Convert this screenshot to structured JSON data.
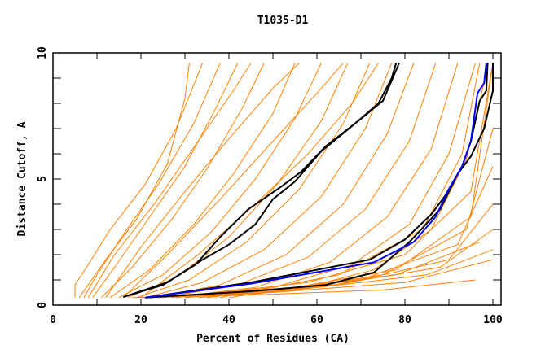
{
  "chart_data": {
    "type": "line",
    "title": "T1035-D1",
    "xlabel": "Percent of Residues (CA)",
    "ylabel": "Distance Cutoff, A",
    "xlim": [
      0,
      100
    ],
    "ylim": [
      0,
      10
    ],
    "x_ticks": [
      0,
      20,
      40,
      60,
      80,
      100
    ],
    "y_ticks": [
      0,
      5,
      10
    ],
    "x_minor_step": 10,
    "y_minor_step": 1,
    "grid": false,
    "colors": {
      "models": "#ff8000",
      "highlight": "#000000",
      "reference": "#0000ff"
    },
    "series_orange": [
      [
        [
          5,
          0.3
        ],
        [
          5,
          0.8
        ],
        [
          8,
          1.6
        ],
        [
          13,
          3
        ],
        [
          21,
          4.8
        ],
        [
          28,
          7
        ],
        [
          34,
          9.6
        ]
      ],
      [
        [
          7,
          0.3
        ],
        [
          10,
          1.2
        ],
        [
          16,
          2.8
        ],
        [
          24,
          4.8
        ],
        [
          32,
          7.2
        ],
        [
          38,
          9.6
        ]
      ],
      [
        [
          9,
          0.3
        ],
        [
          14,
          1.5
        ],
        [
          22,
          3.5
        ],
        [
          30,
          5.5
        ],
        [
          37,
          7.8
        ],
        [
          42,
          9.6
        ]
      ],
      [
        [
          11,
          0.3
        ],
        [
          18,
          1.5
        ],
        [
          27,
          3.4
        ],
        [
          35,
          5.4
        ],
        [
          43,
          7.8
        ],
        [
          48,
          9.6
        ]
      ],
      [
        [
          13,
          0.3
        ],
        [
          22,
          1.4
        ],
        [
          32,
          3.2
        ],
        [
          41,
          5.2
        ],
        [
          50,
          7.6
        ],
        [
          55,
          9.6
        ]
      ],
      [
        [
          15,
          0.3
        ],
        [
          25,
          1.2
        ],
        [
          36,
          2.9
        ],
        [
          46,
          5
        ],
        [
          55,
          7.4
        ],
        [
          61,
          9.6
        ]
      ],
      [
        [
          17,
          0.3
        ],
        [
          28,
          1.1
        ],
        [
          40,
          2.7
        ],
        [
          51,
          4.8
        ],
        [
          61,
          7.3
        ],
        [
          67,
          9.6
        ]
      ],
      [
        [
          19,
          0.3
        ],
        [
          31,
          1
        ],
        [
          44,
          2.5
        ],
        [
          56,
          4.6
        ],
        [
          66,
          7.2
        ],
        [
          72,
          9.6
        ]
      ],
      [
        [
          21,
          0.3
        ],
        [
          34,
          0.9
        ],
        [
          48,
          2.2
        ],
        [
          61,
          4.3
        ],
        [
          71,
          7
        ],
        [
          77,
          9.6
        ]
      ],
      [
        [
          23,
          0.3
        ],
        [
          38,
          0.8
        ],
        [
          53,
          2
        ],
        [
          66,
          4
        ],
        [
          76,
          6.8
        ],
        [
          82,
          9.6
        ]
      ],
      [
        [
          25,
          0.3
        ],
        [
          42,
          0.8
        ],
        [
          58,
          1.9
        ],
        [
          71,
          3.8
        ],
        [
          81,
          6.5
        ],
        [
          87,
          9.6
        ]
      ],
      [
        [
          27,
          0.3
        ],
        [
          46,
          0.7
        ],
        [
          63,
          1.7
        ],
        [
          76,
          3.5
        ],
        [
          86,
          6.2
        ],
        [
          92,
          9.6
        ]
      ],
      [
        [
          30,
          0.3
        ],
        [
          50,
          0.7
        ],
        [
          68,
          1.6
        ],
        [
          81,
          3.2
        ],
        [
          90,
          6
        ],
        [
          96,
          9.6
        ]
      ],
      [
        [
          33,
          0.3
        ],
        [
          55,
          0.6
        ],
        [
          73,
          1.4
        ],
        [
          86,
          3
        ],
        [
          94,
          5.8
        ],
        [
          99,
          9.6
        ]
      ],
      [
        [
          6,
          0.3
        ],
        [
          12,
          1.8
        ],
        [
          19,
          3.4
        ],
        [
          26,
          5.6
        ],
        [
          30,
          8.2
        ],
        [
          31,
          9.6
        ]
      ],
      [
        [
          8,
          0.3
        ],
        [
          14,
          2
        ],
        [
          23,
          4
        ],
        [
          33,
          6.5
        ],
        [
          41,
          8.5
        ],
        [
          45,
          9.6
        ]
      ],
      [
        [
          12,
          0.3
        ],
        [
          20,
          2.3
        ],
        [
          30,
          4.5
        ],
        [
          40,
          6.6
        ],
        [
          50,
          8.6
        ],
        [
          56,
          9.6
        ]
      ],
      [
        [
          16,
          0.3
        ],
        [
          26,
          2
        ],
        [
          38,
          4.2
        ],
        [
          50,
          6.5
        ],
        [
          60,
          8.4
        ],
        [
          66,
          9.6
        ]
      ],
      [
        [
          20,
          0.3
        ],
        [
          33,
          2
        ],
        [
          46,
          4
        ],
        [
          58,
          6
        ],
        [
          68,
          8
        ],
        [
          74,
          9.6
        ]
      ],
      [
        [
          20,
          0.3
        ],
        [
          50,
          0.5
        ],
        [
          80,
          0.9
        ],
        [
          100,
          1.8
        ]
      ],
      [
        [
          22,
          0.3
        ],
        [
          55,
          0.6
        ],
        [
          85,
          1.2
        ],
        [
          100,
          2.2
        ]
      ],
      [
        [
          25,
          0.3
        ],
        [
          60,
          0.7
        ],
        [
          88,
          1.5
        ],
        [
          100,
          3
        ]
      ],
      [
        [
          30,
          0.3
        ],
        [
          65,
          0.8
        ],
        [
          90,
          1.8
        ],
        [
          100,
          4
        ]
      ],
      [
        [
          35,
          0.3
        ],
        [
          70,
          1
        ],
        [
          92,
          2.4
        ],
        [
          100,
          5.5
        ]
      ],
      [
        [
          40,
          0.3
        ],
        [
          75,
          1.2
        ],
        [
          94,
          3
        ],
        [
          100,
          7
        ]
      ],
      [
        [
          45,
          0.4
        ],
        [
          78,
          1.4
        ],
        [
          95,
          3.5
        ],
        [
          100,
          9.6
        ]
      ],
      [
        [
          18,
          0.3
        ],
        [
          45,
          0.4
        ],
        [
          75,
          0.6
        ],
        [
          96,
          1
        ]
      ],
      [
        [
          24,
          0.3
        ],
        [
          50,
          0.6
        ],
        [
          78,
          1.2
        ],
        [
          97,
          2.5
        ]
      ],
      [
        [
          28,
          0.3
        ],
        [
          58,
          0.9
        ],
        [
          80,
          2
        ],
        [
          95,
          4.5
        ],
        [
          100,
          9.6
        ]
      ],
      [
        [
          38,
          0.3
        ],
        [
          65,
          1.2
        ],
        [
          84,
          3
        ],
        [
          93,
          6
        ],
        [
          97,
          9.6
        ]
      ]
    ],
    "series_black": [
      [
        [
          16,
          0.32
        ],
        [
          25,
          0.8
        ],
        [
          32.4,
          1.6
        ],
        [
          38,
          2.7
        ],
        [
          44.4,
          3.8
        ],
        [
          51.9,
          4.7
        ],
        [
          56.5,
          5.3
        ],
        [
          62,
          6.3
        ],
        [
          69.4,
          7.3
        ],
        [
          75,
          8.1
        ],
        [
          78.7,
          9.6
        ]
      ],
      [
        [
          16,
          0.32
        ],
        [
          26,
          0.9
        ],
        [
          34,
          1.8
        ],
        [
          40,
          2.4
        ],
        [
          46,
          3.2
        ],
        [
          50,
          4.2
        ],
        [
          55,
          4.9
        ],
        [
          61,
          6.1
        ],
        [
          68,
          7.1
        ],
        [
          74,
          8.0
        ],
        [
          77,
          9.0
        ],
        [
          78,
          9.6
        ]
      ],
      [
        [
          21,
          0.3
        ],
        [
          45,
          0.55
        ],
        [
          62,
          0.8
        ],
        [
          73,
          1.3
        ],
        [
          81,
          2.5
        ],
        [
          88,
          3.8
        ],
        [
          92,
          5.2
        ],
        [
          95,
          5.9
        ],
        [
          98,
          7.0
        ],
        [
          100,
          8.5
        ],
        [
          100,
          9.6
        ]
      ],
      [
        [
          21,
          0.3
        ],
        [
          45,
          0.9
        ],
        [
          72,
          1.8
        ],
        [
          80,
          2.6
        ],
        [
          86,
          3.6
        ],
        [
          89,
          4.3
        ],
        [
          91,
          4.9
        ],
        [
          93,
          5.5
        ],
        [
          95,
          6.5
        ],
        [
          97,
          8.1
        ],
        [
          98.5,
          8.5
        ],
        [
          98.8,
          9.6
        ]
      ]
    ],
    "series_blue": [
      [
        [
          21,
          0.3
        ],
        [
          45,
          0.85
        ],
        [
          73,
          1.7
        ],
        [
          82,
          2.5
        ],
        [
          87,
          3.5
        ],
        [
          90,
          4.6
        ],
        [
          93,
          5.5
        ],
        [
          95,
          6.5
        ],
        [
          96.5,
          8.4
        ],
        [
          98,
          8.8
        ],
        [
          98.5,
          9.6
        ]
      ]
    ]
  }
}
